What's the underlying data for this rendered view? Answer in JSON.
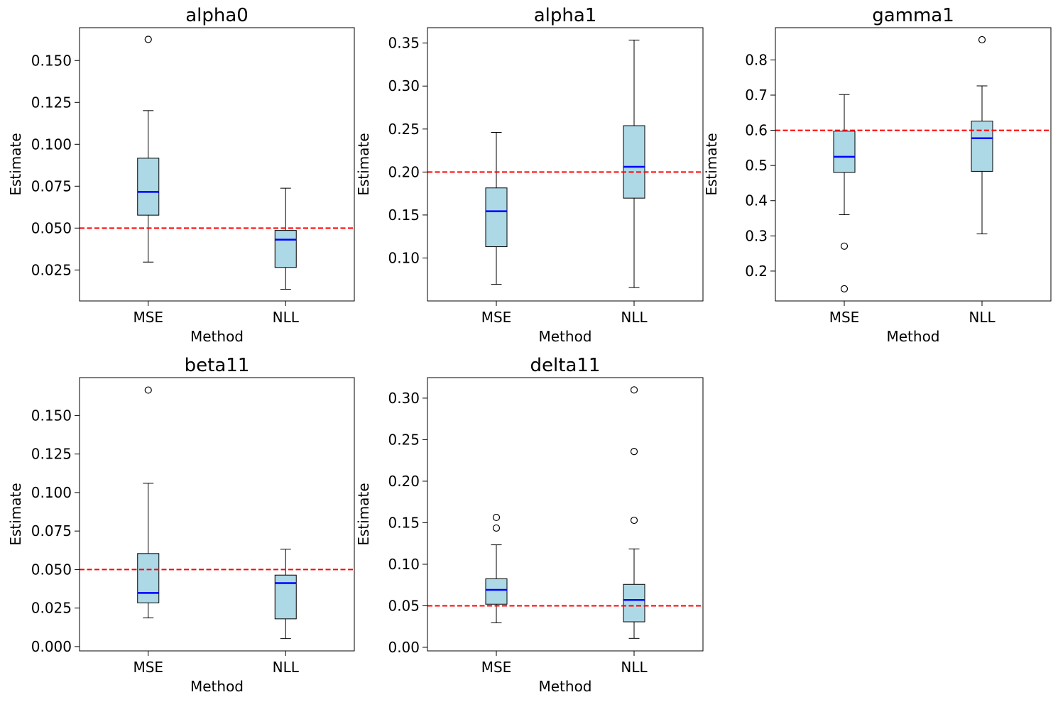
{
  "colors": {
    "box_fill": "#add8e6",
    "box_edge": "#000000",
    "median": "#0000ff",
    "reference": "#ff0000",
    "flier": "#000000"
  },
  "chart_data": [
    {
      "type": "boxplot",
      "title": "alpha0",
      "xlabel": "Method",
      "ylabel": "Estimate",
      "categories": [
        "MSE",
        "NLL"
      ],
      "ylim": [
        0.0065,
        0.1696
      ],
      "yticks": [
        0.025,
        0.05,
        0.075,
        0.1,
        0.125,
        0.15
      ],
      "ytick_labels": [
        "0.025",
        "0.050",
        "0.075",
        "0.100",
        "0.125",
        "0.150"
      ],
      "reference_line": 0.05,
      "boxes": [
        {
          "name": "MSE",
          "whisker_low": 0.0297,
          "q1": 0.0577,
          "median": 0.0716,
          "q3": 0.0917,
          "whisker_high": 0.1201,
          "fliers": [
            0.1626
          ]
        },
        {
          "name": "NLL",
          "whisker_low": 0.0135,
          "q1": 0.0265,
          "median": 0.0431,
          "q3": 0.0486,
          "whisker_high": 0.0738,
          "fliers": []
        }
      ]
    },
    {
      "type": "boxplot",
      "title": "alpha1",
      "xlabel": "Method",
      "ylabel": "Estimate",
      "categories": [
        "MSE",
        "NLL"
      ],
      "ylim": [
        0.05,
        0.3679
      ],
      "yticks": [
        0.1,
        0.15,
        0.2,
        0.25,
        0.3,
        0.35
      ],
      "ytick_labels": [
        "0.10",
        "0.15",
        "0.20",
        "0.25",
        "0.30",
        "0.35"
      ],
      "reference_line": 0.2,
      "boxes": [
        {
          "name": "MSE",
          "whisker_low": 0.0693,
          "q1": 0.1131,
          "median": 0.1544,
          "q3": 0.1815,
          "whisker_high": 0.2461,
          "fliers": []
        },
        {
          "name": "NLL",
          "whisker_low": 0.0656,
          "q1": 0.1696,
          "median": 0.2061,
          "q3": 0.2539,
          "whisker_high": 0.3535,
          "fliers": []
        }
      ]
    },
    {
      "type": "boxplot",
      "title": "gamma1",
      "xlabel": "Method",
      "ylabel": "Estimate",
      "categories": [
        "MSE",
        "NLL"
      ],
      "ylim": [
        0.1151,
        0.8916
      ],
      "yticks": [
        0.2,
        0.3,
        0.4,
        0.5,
        0.6,
        0.7,
        0.8
      ],
      "ytick_labels": [
        "0.2",
        "0.3",
        "0.4",
        "0.5",
        "0.6",
        "0.7",
        "0.8"
      ],
      "reference_line": 0.6,
      "boxes": [
        {
          "name": "MSE",
          "whisker_low": 0.3602,
          "q1": 0.4803,
          "median": 0.5247,
          "q3": 0.5976,
          "whisker_high": 0.7016,
          "fliers": [
            0.2708,
            0.1496
          ]
        },
        {
          "name": "NLL",
          "whisker_low": 0.3056,
          "q1": 0.4834,
          "median": 0.5774,
          "q3": 0.6261,
          "whisker_high": 0.7262,
          "fliers": [
            0.8574
          ]
        }
      ]
    },
    {
      "type": "boxplot",
      "title": "beta11",
      "xlabel": "Method",
      "ylabel": "Estimate",
      "categories": [
        "MSE",
        "NLL"
      ],
      "ylim": [
        -0.0028,
        0.1746
      ],
      "yticks": [
        0.0,
        0.025,
        0.05,
        0.075,
        0.1,
        0.125,
        0.15
      ],
      "ytick_labels": [
        "0.000",
        "0.025",
        "0.050",
        "0.075",
        "0.100",
        "0.125",
        "0.150"
      ],
      "reference_line": 0.05,
      "boxes": [
        {
          "name": "MSE",
          "whisker_low": 0.0186,
          "q1": 0.0284,
          "median": 0.0348,
          "q3": 0.0604,
          "whisker_high": 0.106,
          "fliers": [
            0.1665
          ]
        },
        {
          "name": "NLL",
          "whisker_low": 0.0052,
          "q1": 0.018,
          "median": 0.0412,
          "q3": 0.0464,
          "whisker_high": 0.0632,
          "fliers": []
        }
      ]
    },
    {
      "type": "boxplot",
      "title": "delta11",
      "xlabel": "Method",
      "ylabel": "Estimate",
      "categories": [
        "MSE",
        "NLL"
      ],
      "ylim": [
        -0.0043,
        0.3247
      ],
      "yticks": [
        0.0,
        0.05,
        0.1,
        0.15,
        0.2,
        0.25,
        0.3
      ],
      "ytick_labels": [
        "0.00",
        "0.05",
        "0.10",
        "0.15",
        "0.20",
        "0.25",
        "0.30"
      ],
      "reference_line": 0.05,
      "boxes": [
        {
          "name": "MSE",
          "whisker_low": 0.0295,
          "q1": 0.0519,
          "median": 0.0692,
          "q3": 0.0826,
          "whisker_high": 0.1234,
          "fliers": [
            0.1436,
            0.1564
          ]
        },
        {
          "name": "NLL",
          "whisker_low": 0.0108,
          "q1": 0.0307,
          "median": 0.057,
          "q3": 0.0758,
          "whisker_high": 0.1185,
          "fliers": [
            0.1529,
            0.2357,
            0.3099
          ]
        }
      ]
    }
  ]
}
